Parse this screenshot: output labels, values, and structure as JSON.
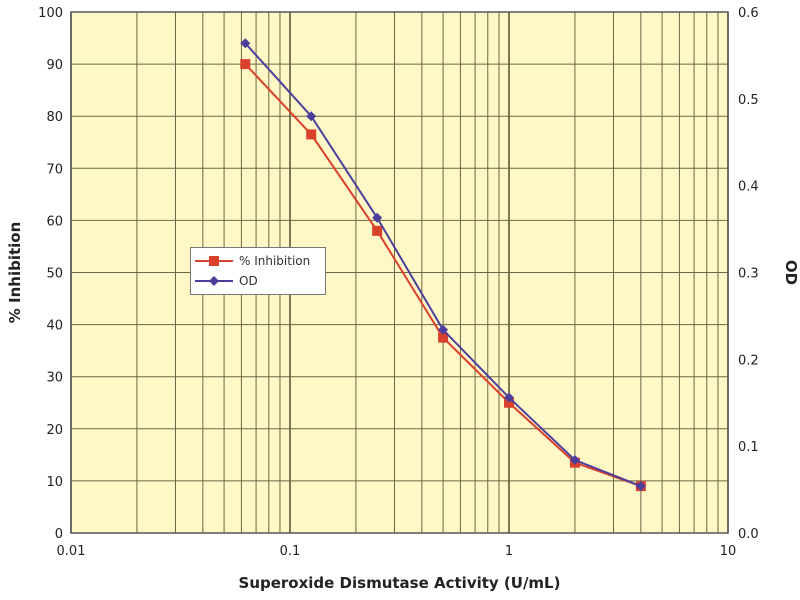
{
  "chart_data": {
    "type": "line",
    "xlabel": "Superoxide Dismutase Activity (U/mL)",
    "ylabel": "% Inhibition",
    "y2label": "OD",
    "xscale": "log",
    "xlim": [
      0.01,
      10
    ],
    "ylim": [
      0,
      100
    ],
    "y2lim": [
      0,
      0.6
    ],
    "xticks": [
      "0.01",
      "0.1",
      "1",
      "10"
    ],
    "yticks": [
      "0",
      "10",
      "20",
      "30",
      "40",
      "50",
      "60",
      "70",
      "80",
      "90",
      "100"
    ],
    "y2ticks": [
      "0.0",
      "0.1",
      "0.2",
      "0.3",
      "0.4",
      "0.5",
      "0.6"
    ],
    "grid": true,
    "legend_position": "middle-left",
    "background": "#fff8c6",
    "x": [
      0.0625,
      0.125,
      0.25,
      0.5,
      1,
      2,
      4
    ],
    "series": [
      {
        "name": "% Inhibition",
        "axis": "left",
        "color": "#d9412c",
        "marker": "square",
        "values": [
          90,
          76.5,
          58,
          37.5,
          25,
          13.5,
          9
        ]
      },
      {
        "name": "OD",
        "axis": "right",
        "color": "#4b3f9b",
        "marker": "diamond",
        "values": [
          0.564,
          0.48,
          0.363,
          0.234,
          0.156,
          0.084,
          0.054
        ]
      }
    ]
  }
}
